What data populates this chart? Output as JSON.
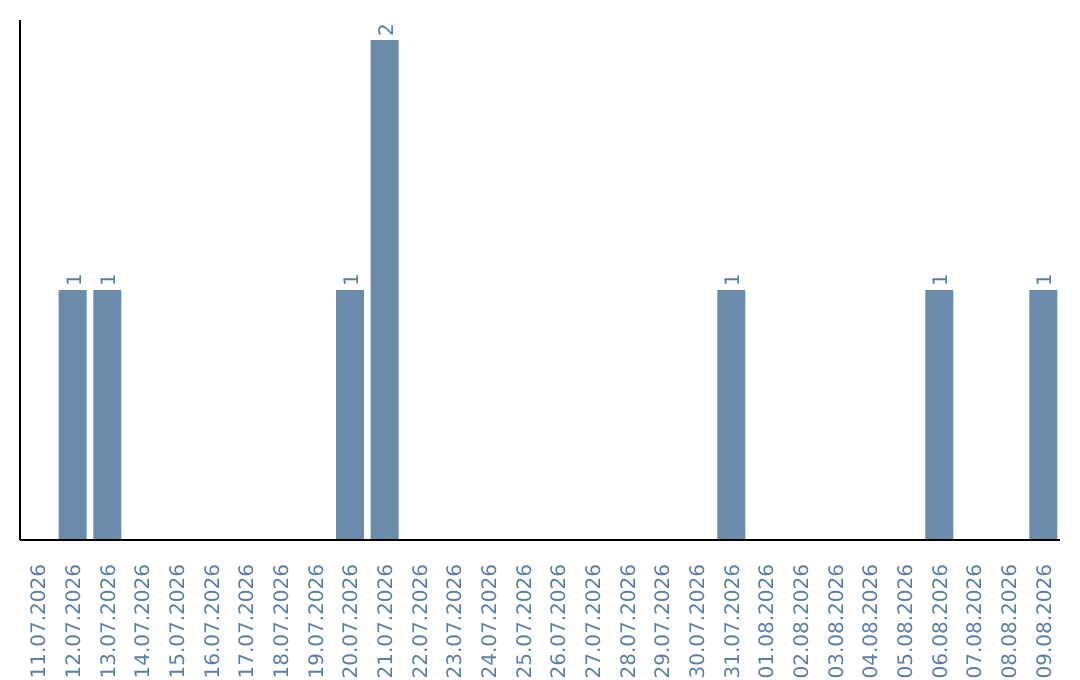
{
  "chart_data": {
    "type": "bar",
    "categories": [
      "11.07.2026",
      "12.07.2026",
      "13.07.2026",
      "14.07.2026",
      "15.07.2026",
      "16.07.2026",
      "17.07.2026",
      "18.07.2026",
      "19.07.2026",
      "20.07.2026",
      "21.07.2026",
      "22.07.2026",
      "23.07.2026",
      "24.07.2026",
      "25.07.2026",
      "26.07.2026",
      "27.07.2026",
      "28.07.2026",
      "29.07.2026",
      "30.07.2026",
      "31.07.2026",
      "01.08.2026",
      "02.08.2026",
      "03.08.2026",
      "04.08.2026",
      "05.08.2026",
      "06.08.2026",
      "07.08.2026",
      "08.08.2026",
      "09.08.2026"
    ],
    "values": [
      0,
      1,
      1,
      0,
      0,
      0,
      0,
      0,
      0,
      1,
      2,
      0,
      0,
      0,
      0,
      0,
      0,
      0,
      0,
      0,
      1,
      0,
      0,
      0,
      0,
      0,
      1,
      0,
      0,
      1
    ],
    "value_labels": [
      null,
      "1",
      "1",
      null,
      null,
      null,
      null,
      null,
      null,
      "1",
      "2",
      null,
      null,
      null,
      null,
      null,
      null,
      null,
      null,
      null,
      "1",
      null,
      null,
      null,
      null,
      null,
      "1",
      null,
      null,
      "1"
    ],
    "color": "#6a8caa",
    "grid": false,
    "legend": false
  }
}
